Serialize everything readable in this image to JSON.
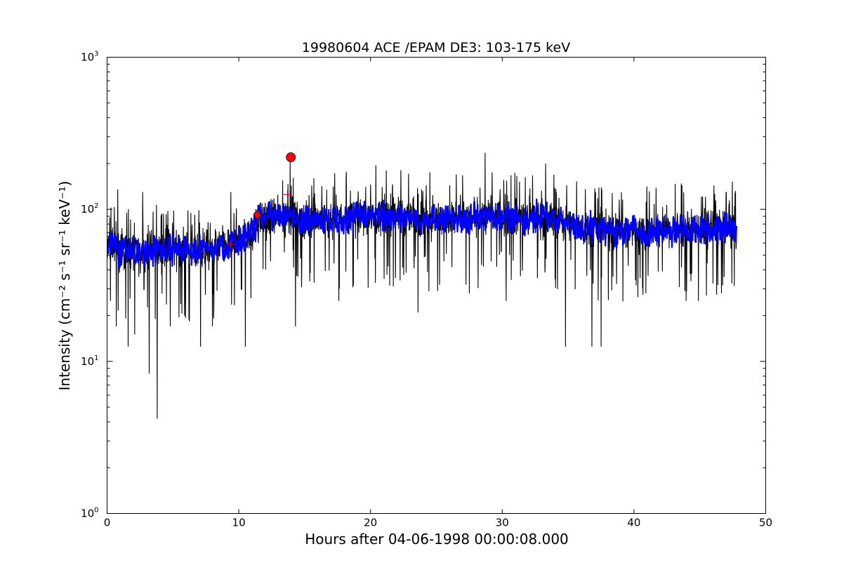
{
  "chart_data": {
    "type": "line",
    "title": "19980604 ACE /EPAM DE3: 103-175 keV",
    "xlabel": "Hours after 04-06-1998 00:00:08.000",
    "ylabel": "Intensity (cm⁻² s⁻¹ sr⁻¹ keV⁻¹)",
    "xlim": [
      0,
      50
    ],
    "ylim": [
      1,
      1000
    ],
    "yscale": "log",
    "grid": false,
    "x_ticks": [
      "0",
      "10",
      "20",
      "30",
      "40",
      "50"
    ],
    "y_ticks": [
      {
        "base": "10",
        "exp": "0"
      },
      {
        "base": "10",
        "exp": "1"
      },
      {
        "base": "10",
        "exp": "2"
      },
      {
        "base": "10",
        "exp": "3"
      }
    ],
    "series": [
      {
        "style": "raw",
        "color": "#000000",
        "points": [
          [
            0.0,
            55
          ],
          [
            0.5,
            60
          ],
          [
            1.0,
            50
          ],
          [
            1.5,
            55
          ],
          [
            2.0,
            52
          ],
          [
            2.5,
            50
          ],
          [
            3.0,
            53
          ],
          [
            3.5,
            55
          ],
          [
            4.0,
            54
          ],
          [
            4.5,
            52
          ],
          [
            5.0,
            55
          ],
          [
            5.5,
            56
          ],
          [
            6.0,
            55
          ],
          [
            6.5,
            54
          ],
          [
            7.0,
            55
          ],
          [
            7.5,
            56
          ],
          [
            8.0,
            57
          ],
          [
            8.5,
            58
          ],
          [
            9.0,
            58
          ],
          [
            9.5,
            60
          ],
          [
            10.0,
            62
          ],
          [
            10.5,
            65
          ],
          [
            11.0,
            72
          ],
          [
            11.5,
            82
          ],
          [
            12.0,
            88
          ],
          [
            12.5,
            90
          ],
          [
            13.0,
            88
          ],
          [
            13.5,
            90
          ],
          [
            14.0,
            92
          ],
          [
            14.5,
            88
          ],
          [
            15.0,
            85
          ],
          [
            16.0,
            85
          ],
          [
            17.0,
            86
          ],
          [
            18.0,
            88
          ],
          [
            19.0,
            90
          ],
          [
            20.0,
            92
          ],
          [
            21.0,
            90
          ],
          [
            22.0,
            92
          ],
          [
            23.0,
            88
          ],
          [
            24.0,
            86
          ],
          [
            25.0,
            85
          ],
          [
            26.0,
            85
          ],
          [
            27.0,
            86
          ],
          [
            28.0,
            88
          ],
          [
            29.0,
            90
          ],
          [
            30.0,
            90
          ],
          [
            31.0,
            88
          ],
          [
            32.0,
            88
          ],
          [
            33.0,
            90
          ],
          [
            34.0,
            86
          ],
          [
            35.0,
            80
          ],
          [
            36.0,
            76
          ],
          [
            37.0,
            74
          ],
          [
            38.0,
            73
          ],
          [
            39.0,
            72
          ],
          [
            40.0,
            72
          ],
          [
            41.0,
            72
          ],
          [
            42.0,
            72
          ],
          [
            43.0,
            73
          ],
          [
            44.0,
            74
          ],
          [
            45.0,
            74
          ],
          [
            46.0,
            75
          ],
          [
            47.0,
            75
          ],
          [
            47.8,
            76
          ]
        ],
        "spikes_low": [
          [
            0.7,
            17
          ],
          [
            1.6,
            12.5
          ],
          [
            2.1,
            15
          ],
          [
            3.2,
            8.3
          ],
          [
            3.8,
            4.2
          ],
          [
            4.8,
            17
          ],
          [
            7.1,
            12.5
          ],
          [
            8.0,
            17
          ],
          [
            10.5,
            12.5
          ],
          [
            14.3,
            17
          ],
          [
            17.6,
            25
          ],
          [
            23.6,
            21
          ],
          [
            27.5,
            28
          ],
          [
            30.3,
            25
          ],
          [
            34.8,
            12.5
          ],
          [
            36.8,
            12.5
          ],
          [
            37.5,
            12.5
          ],
          [
            44.9,
            25
          ]
        ],
        "spikes_high": [
          [
            0.8,
            135
          ],
          [
            2.7,
            130
          ],
          [
            9.4,
            130
          ],
          [
            13.9,
            210
          ],
          [
            15.7,
            160
          ],
          [
            20.4,
            195
          ],
          [
            21.2,
            180
          ],
          [
            24.5,
            175
          ],
          [
            28.7,
            235
          ],
          [
            31.1,
            165
          ],
          [
            33.3,
            200
          ],
          [
            47.7,
            132
          ]
        ]
      },
      {
        "style": "smoothed",
        "color": "#0000ff",
        "xrange": [
          0,
          47.8
        ]
      }
    ],
    "markers": [
      {
        "shape": "plus",
        "x": 9.4,
        "y": 59,
        "color": "#cc0044"
      },
      {
        "shape": "diamond",
        "x": 11.4,
        "y": 92,
        "color": "#ff0000"
      },
      {
        "shape": "plus",
        "x": 13.7,
        "y": 125,
        "color": "#cc0044"
      },
      {
        "shape": "circle",
        "x": 13.95,
        "y": 220,
        "color": "#ff0000"
      }
    ]
  }
}
